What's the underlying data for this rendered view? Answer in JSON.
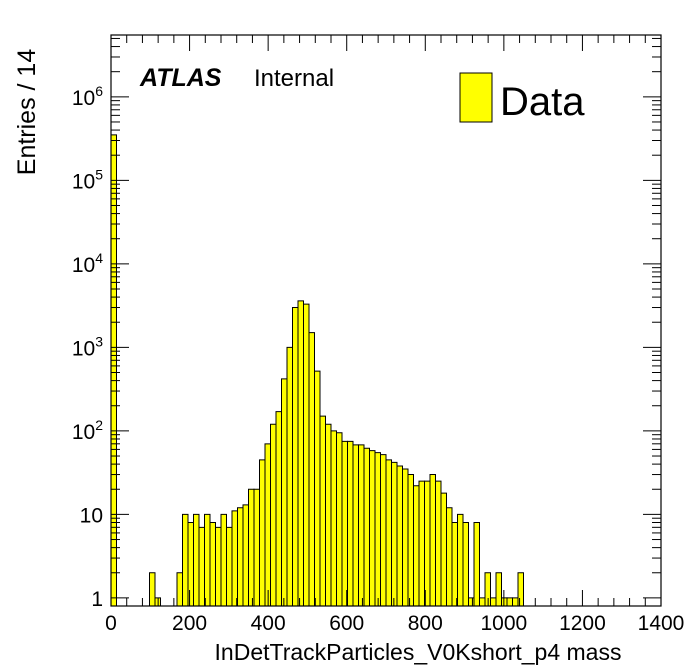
{
  "chart_data": {
    "type": "bar",
    "xlabel": "InDetTrackParticles_V0Kshort_p4 mass",
    "ylabel": "Entries / 14",
    "xlim": [
      0,
      1400
    ],
    "ylim": [
      0.8,
      5500000
    ],
    "log_y": true,
    "bin_width": 14,
    "x_ticks": [
      "0",
      "200",
      "400",
      "600",
      "800",
      "1000",
      "1200",
      "1400"
    ],
    "y_ticks": [
      {
        "base": "1",
        "exp": ""
      },
      {
        "base": "10",
        "exp": ""
      },
      {
        "base": "10",
        "exp": "2"
      },
      {
        "base": "10",
        "exp": "3"
      },
      {
        "base": "10",
        "exp": "4"
      },
      {
        "base": "10",
        "exp": "5"
      },
      {
        "base": "10",
        "exp": "6"
      }
    ],
    "experiment_label": "ATLAS",
    "status_label": "Internal",
    "legend": {
      "label": "Data",
      "placement": "top-right",
      "color": "#ffff00"
    },
    "fill_color": "#ffff00",
    "bins": [
      [
        0,
        350000
      ],
      [
        98,
        2
      ],
      [
        112,
        1
      ],
      [
        168,
        2
      ],
      [
        182,
        10
      ],
      [
        196,
        8
      ],
      [
        210,
        10
      ],
      [
        224,
        7
      ],
      [
        238,
        10
      ],
      [
        252,
        8
      ],
      [
        266,
        7
      ],
      [
        280,
        10
      ],
      [
        294,
        7
      ],
      [
        308,
        11
      ],
      [
        322,
        12
      ],
      [
        336,
        13
      ],
      [
        350,
        20
      ],
      [
        364,
        20
      ],
      [
        378,
        45
      ],
      [
        392,
        70
      ],
      [
        406,
        120
      ],
      [
        420,
        170
      ],
      [
        434,
        420
      ],
      [
        448,
        1000
      ],
      [
        462,
        3000
      ],
      [
        476,
        3600
      ],
      [
        490,
        3300
      ],
      [
        504,
        1500
      ],
      [
        518,
        520
      ],
      [
        532,
        150
      ],
      [
        546,
        120
      ],
      [
        560,
        100
      ],
      [
        574,
        95
      ],
      [
        588,
        75
      ],
      [
        602,
        75
      ],
      [
        616,
        68
      ],
      [
        630,
        68
      ],
      [
        644,
        62
      ],
      [
        658,
        58
      ],
      [
        672,
        55
      ],
      [
        686,
        52
      ],
      [
        700,
        45
      ],
      [
        714,
        42
      ],
      [
        728,
        38
      ],
      [
        742,
        35
      ],
      [
        756,
        30
      ],
      [
        770,
        22
      ],
      [
        784,
        25
      ],
      [
        798,
        25
      ],
      [
        812,
        30
      ],
      [
        826,
        25
      ],
      [
        840,
        18
      ],
      [
        854,
        12
      ],
      [
        868,
        8
      ],
      [
        882,
        10
      ],
      [
        896,
        8
      ],
      [
        910,
        1
      ],
      [
        924,
        8
      ],
      [
        938,
        1
      ],
      [
        952,
        2
      ],
      [
        966,
        1
      ],
      [
        980,
        2
      ],
      [
        994,
        1
      ],
      [
        1008,
        1
      ],
      [
        1022,
        1
      ],
      [
        1036,
        2
      ]
    ]
  }
}
